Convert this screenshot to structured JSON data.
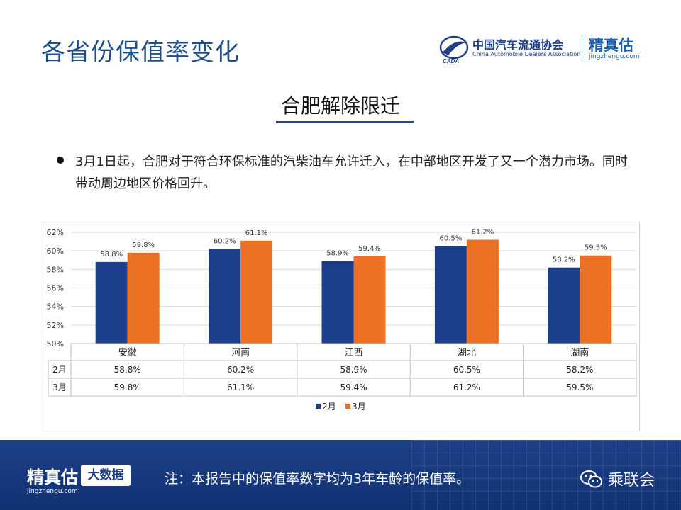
{
  "header": {
    "title": "各省份保值率变化",
    "cada_cn": "中国汽车流通协会",
    "cada_en": "China Automobile Dealers Association",
    "jzg_cn": "精真估",
    "jzg_url": "jingzhengu.com"
  },
  "section": {
    "title": "合肥解除限迁",
    "bullet": "3月1日起，合肥对于符合环保标准的汽柴油车允许迁入，在中部地区开发了又一个潜力市场。同时带动周边地区价格回升。"
  },
  "colors": {
    "feb": "#1c3f8c",
    "mar": "#ed7125",
    "brand": "#1f4e8c"
  },
  "chart_data": {
    "type": "bar",
    "categories": [
      "安徽",
      "河南",
      "江西",
      "湖北",
      "湖南"
    ],
    "series": [
      {
        "name": "2月",
        "values": [
          58.8,
          60.2,
          58.9,
          60.5,
          58.2
        ],
        "labels": [
          "58.8%",
          "60.2%",
          "58.9%",
          "60.5%",
          "58.2%"
        ]
      },
      {
        "name": "3月",
        "values": [
          59.8,
          61.1,
          59.4,
          61.2,
          59.5
        ],
        "labels": [
          "59.8%",
          "61.1%",
          "59.4%",
          "61.2%",
          "59.5%"
        ]
      }
    ],
    "ylim": [
      50,
      62
    ],
    "yticks": [
      "50%",
      "52%",
      "54%",
      "56%",
      "58%",
      "60%",
      "62%"
    ],
    "grid": true,
    "data_table": true,
    "legend": "bottom"
  },
  "footer": {
    "brand": "精真估",
    "brand_url": "jingzhengu.com",
    "badge": "大数据",
    "note": "注：本报告中的保值率数字均为3年车龄的保值率。",
    "partner": "乘联会"
  }
}
